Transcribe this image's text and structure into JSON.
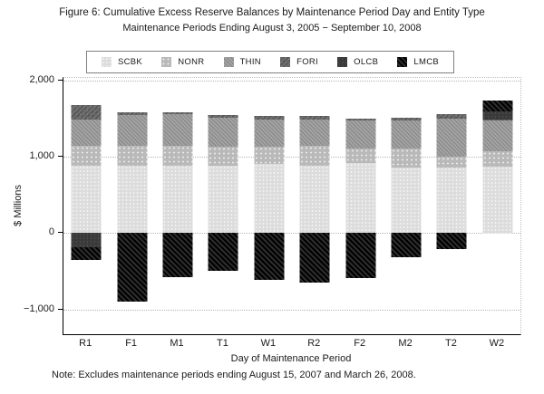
{
  "title": "Figure 6: Cumulative Excess Reserve Balances by Maintenance Period Day and Entity Type",
  "subtitle": "Maintenance Periods Ending August 3, 2005 − September 10, 2008",
  "note": "Note: Excludes maintenance periods ending August 15, 2007 and March 26, 2008.",
  "chart_data": {
    "type": "bar",
    "stacked": true,
    "title": "Figure 6: Cumulative Excess Reserve Balances by Maintenance Period Day and Entity Type",
    "subtitle": "Maintenance Periods Ending August 3, 2005 − September 10, 2008",
    "xlabel": "Day of Maintenance Period",
    "ylabel": "$ Millions",
    "categories": [
      "R1",
      "F1",
      "M1",
      "T1",
      "W1",
      "R2",
      "F2",
      "M2",
      "T2",
      "W2"
    ],
    "series": [
      {
        "name": "SCBK",
        "color": "#dcdcdc",
        "values": [
          880,
          880,
          880,
          880,
          905,
          885,
          915,
          855,
          855,
          875
        ]
      },
      {
        "name": "NONR",
        "color": "#b9b9b9",
        "values": [
          265,
          265,
          265,
          245,
          225,
          255,
          195,
          250,
          145,
          195
        ]
      },
      {
        "name": "THIN",
        "color": "#9a9a9a",
        "values": [
          335,
          400,
          415,
          380,
          355,
          350,
          360,
          370,
          500,
          400
        ]
      },
      {
        "name": "FORI",
        "color": "#636363",
        "values": [
          200,
          30,
          15,
          45,
          45,
          40,
          30,
          40,
          55,
          10
        ]
      },
      {
        "name": "OLCB",
        "color": "#3a3a3a",
        "values": [
          -180,
          0,
          0,
          0,
          0,
          0,
          0,
          0,
          0,
          115
        ]
      },
      {
        "name": "LMCB",
        "color": "#151515",
        "values": [
          -170,
          -895,
          -575,
          -490,
          -615,
          -640,
          -590,
          -310,
          -210,
          140
        ]
      }
    ],
    "yticks": {
      "values": [
        2000,
        1000,
        0,
        -1000
      ],
      "labels": [
        "2,000",
        "1,000",
        "0",
        "−1,000"
      ]
    },
    "ylim": [
      -1320,
      2030
    ],
    "grid": "horizontal-dotted",
    "legend_position": "top",
    "note": "Note: Excludes maintenance periods ending August 15, 2007 and March 26, 2008."
  }
}
